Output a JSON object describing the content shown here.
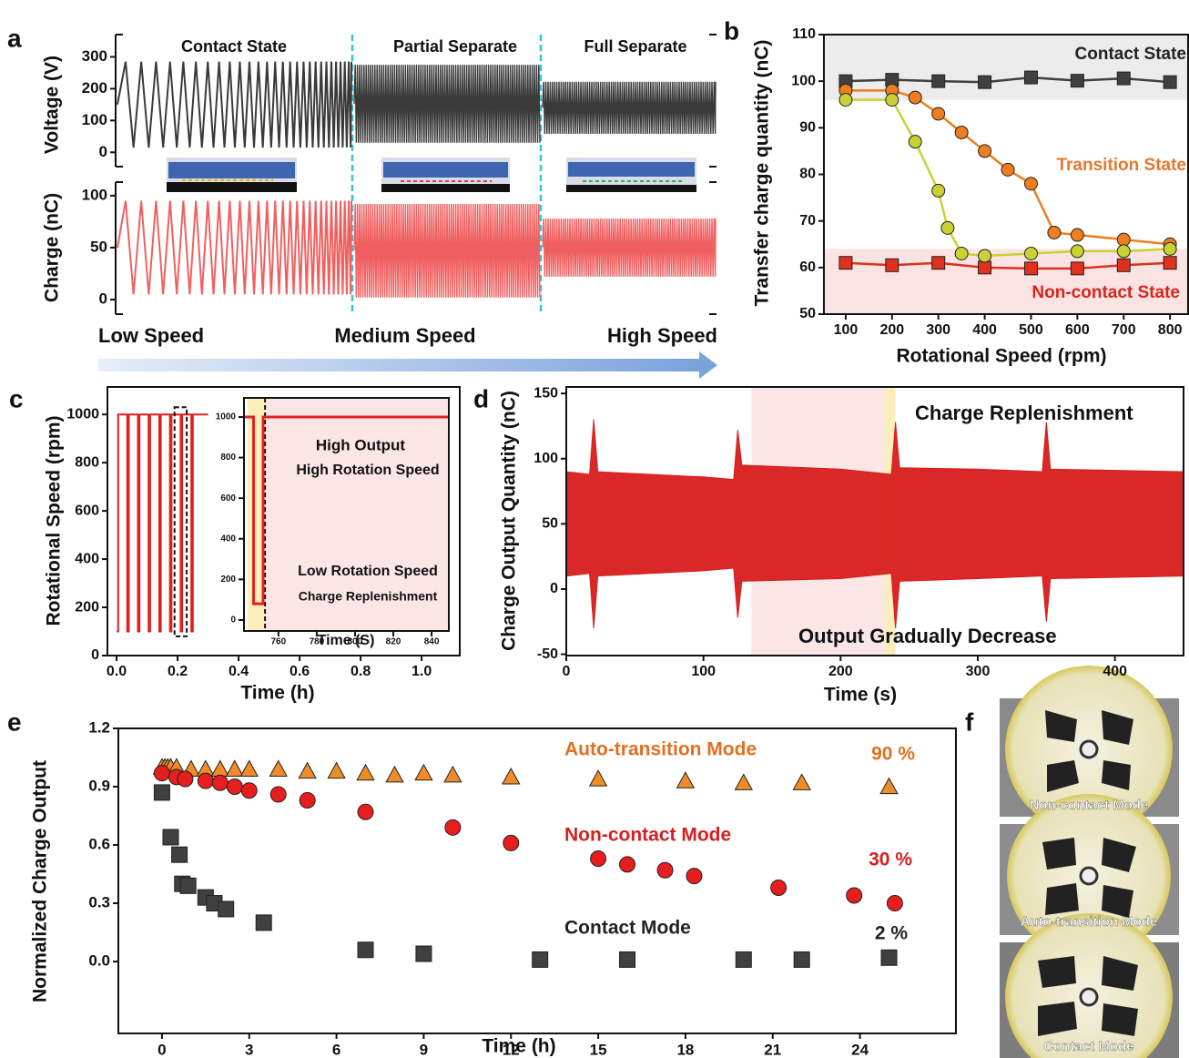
{
  "chart_data": [
    {
      "type": "oscillation",
      "panel": "a",
      "ylabel": "Voltage (V)",
      "ylim": [
        -45,
        370
      ],
      "yticks": [
        0,
        100,
        200,
        300
      ],
      "regions": [
        "Contact State",
        "Partial Separate",
        "Full Separate"
      ],
      "upper": [
        285,
        275,
        222
      ],
      "lower": [
        15,
        30,
        58
      ],
      "color": "#3a3a3a"
    },
    {
      "type": "oscillation",
      "ylabel": "Charge (nC)",
      "ylim": [
        -14,
        113
      ],
      "yticks": [
        0,
        50,
        100
      ],
      "upper": [
        95,
        92,
        78
      ],
      "lower": [
        5,
        2,
        22
      ],
      "color": "#f06060",
      "speeds": [
        "Low Speed",
        "Medium Speed",
        "High Speed"
      ]
    },
    {
      "type": "line",
      "panel": "b",
      "ylabel": "Transfer charge quantity (nC)",
      "xlabel": "Rotational Speed (rpm)",
      "xlim": [
        53,
        839
      ],
      "ylim": [
        50,
        110
      ],
      "xticks": [
        100,
        200,
        300,
        400,
        500,
        600,
        700,
        800
      ],
      "yticks": [
        50,
        60,
        70,
        80,
        90,
        100,
        110
      ],
      "bands": [
        {
          "from": 96,
          "to": 110,
          "color": "#ececec"
        },
        {
          "from": 50,
          "to": 64,
          "color": "#fbe3e3"
        }
      ],
      "series": [
        {
          "name": "Contact State",
          "color": "#404040",
          "marker": "square",
          "x": [
            100,
            200,
            300,
            400,
            500,
            600,
            700,
            800
          ],
          "values": [
            100,
            100.3,
            100,
            99.8,
            100.8,
            100.1,
            100.6,
            99.8
          ]
        },
        {
          "name": "Non-contact State",
          "color": "#e0301e",
          "marker": "square",
          "x": [
            100,
            200,
            300,
            400,
            500,
            600,
            700,
            800
          ],
          "values": [
            61,
            60.5,
            61,
            60,
            59.8,
            59.8,
            60.5,
            61
          ]
        },
        {
          "name": "Transition State",
          "color": "#f07d1e",
          "marker": "circle",
          "x": [
            100,
            200,
            250,
            300,
            350,
            400,
            450,
            500,
            550,
            600,
            700,
            800
          ],
          "values": [
            98,
            98,
            96.5,
            93,
            89,
            85,
            81,
            78,
            67.5,
            67,
            66,
            65
          ]
        },
        {
          "color": "#c8d232",
          "marker": "circle",
          "x": [
            100,
            200,
            250,
            300,
            320,
            350,
            400,
            500,
            600,
            700,
            800
          ],
          "values": [
            96,
            96,
            87,
            76.5,
            68.5,
            63,
            62.5,
            63,
            63.5,
            63.5,
            64
          ]
        }
      ]
    },
    {
      "type": "line",
      "panel": "c",
      "ylabel": "Rotational Speed (rpm)",
      "xlabel": "Time (h)",
      "xlim": [
        -0.03,
        1.125
      ],
      "ylim": [
        0,
        1114
      ],
      "xticks": [
        {
          "value": 0,
          "label": "0.0"
        },
        0.2,
        0.4,
        0.6,
        0.8,
        {
          "value": 1,
          "label": "1.0"
        }
      ],
      "yticks": [
        0,
        200,
        400,
        600,
        800,
        1000
      ],
      "zoom": [
        0.19,
        0.23
      ],
      "series": [
        {
          "color": "#e02020",
          "x": [
            0,
            0.005,
            0.005,
            0.035,
            0.035,
            0.04,
            0.04,
            0.07,
            0.07,
            0.075,
            0.075,
            0.105,
            0.105,
            0.11,
            0.11,
            0.14,
            0.14,
            0.145,
            0.145,
            0.175,
            0.175,
            0.18,
            0.18,
            0.21,
            0.21,
            0.215,
            0.215,
            0.245,
            0.245,
            0.25,
            0.25,
            0.3
          ],
          "values": [
            100,
            100,
            1000,
            1000,
            100,
            100,
            1000,
            1000,
            100,
            100,
            1000,
            1000,
            100,
            100,
            1000,
            1000,
            100,
            100,
            1000,
            1000,
            100,
            100,
            1000,
            1000,
            100,
            100,
            1000,
            1000,
            100,
            100,
            1000,
            1000
          ]
        }
      ],
      "inset": {
        "type": "line",
        "xlabel": "Time (S)",
        "xlim": [
          742,
          849
        ],
        "ylim": [
          -54,
          1094
        ],
        "xticks": [
          760,
          780,
          800,
          820,
          840
        ],
        "yticks": [
          0,
          200,
          400,
          600,
          800,
          1000
        ],
        "xbands": [
          {
            "from": 744,
            "to": 753,
            "color": "#fbeebb"
          },
          {
            "from": 753,
            "to": 849,
            "color": "#fbe6e6"
          }
        ],
        "annotations": [
          "High Output",
          "High Rotation Speed",
          "Low Rotation Speed",
          "Charge Replenishment"
        ],
        "series": [
          {
            "color": "#e02020",
            "x": [
              742,
              747,
              747,
              752,
              752,
              849
            ],
            "values": [
              1000,
              1000,
              80,
              80,
              1000,
              1000
            ]
          }
        ]
      }
    },
    {
      "type": "band",
      "panel": "d",
      "ylabel": "Charge Output Quantity (nC)",
      "xlabel": "Time (s)",
      "xlim": [
        0,
        450
      ],
      "ylim": [
        -51,
        155
      ],
      "xticks": [
        0,
        100,
        200,
        300,
        400
      ],
      "yticks": [
        -50,
        0,
        50,
        100,
        150
      ],
      "xbands": [
        {
          "from": 135,
          "to": 232,
          "color": "#fbe6e6"
        },
        {
          "from": 232,
          "to": 240,
          "color": "#fbeebb"
        }
      ],
      "annotations": [
        "Charge Replenishment",
        "Output Gradually Decrease"
      ],
      "color": "#d81c1c",
      "x": [
        0,
        17,
        20,
        23,
        100,
        122,
        125,
        128,
        200,
        237,
        240,
        243,
        300,
        347,
        350,
        353,
        450
      ],
      "upper": [
        90,
        88,
        130,
        90,
        86,
        84,
        122,
        95,
        92,
        88,
        128,
        93,
        92,
        90,
        128,
        92,
        90
      ],
      "lower": [
        10,
        12,
        -30,
        10,
        14,
        16,
        -22,
        6,
        8,
        12,
        -30,
        6,
        8,
        10,
        -25,
        8,
        10
      ]
    },
    {
      "type": "scatter",
      "panel": "e",
      "ylabel": "Normalized Charge Output",
      "xlabel": "Time (h)",
      "xlim": [
        -1.5,
        27.3
      ],
      "ylim": [
        -0.37,
        1.2
      ],
      "xticks": [
        0,
        3,
        6,
        9,
        12,
        15,
        18,
        21,
        24
      ],
      "yticks": [
        {
          "value": 0,
          "label": "0.0"
        },
        0.3,
        0.6,
        0.9,
        1.2
      ],
      "annotations": [
        "90 %",
        "30 %",
        "2 %"
      ],
      "series": [
        {
          "name": "Auto-transition Mode",
          "color": "#f08c28",
          "marker": "triangle",
          "x": [
            0,
            0.1,
            0.2,
            0.3,
            0.5,
            1,
            1.5,
            2,
            2.5,
            3,
            4,
            5,
            6,
            7,
            8,
            9,
            10,
            12,
            15,
            18,
            20,
            22,
            25
          ],
          "values": [
            1,
            1,
            1,
            1,
            1,
            0.99,
            0.99,
            0.99,
            0.99,
            0.99,
            0.99,
            0.98,
            0.98,
            0.97,
            0.96,
            0.97,
            0.96,
            0.95,
            0.94,
            0.93,
            0.92,
            0.92,
            0.9
          ]
        },
        {
          "name": "Non-contact Mode",
          "color": "#e81e1e",
          "marker": "circle",
          "x": [
            0,
            0.5,
            0.8,
            1.5,
            2,
            2.5,
            3,
            4,
            5,
            7,
            10,
            12,
            15,
            16,
            17.3,
            18.3,
            21.2,
            23.8,
            25.2
          ],
          "values": [
            0.97,
            0.95,
            0.94,
            0.93,
            0.92,
            0.9,
            0.88,
            0.86,
            0.83,
            0.77,
            0.69,
            0.61,
            0.53,
            0.5,
            0.47,
            0.44,
            0.38,
            0.34,
            0.3
          ]
        },
        {
          "name": "Contact Mode",
          "color": "#404040",
          "marker": "square",
          "x": [
            0,
            0.3,
            0.6,
            0.7,
            0.9,
            1.5,
            1.8,
            2.2,
            3.5,
            7,
            9,
            13,
            16,
            20,
            22,
            25
          ],
          "values": [
            0.87,
            0.64,
            0.55,
            0.4,
            0.39,
            0.33,
            0.3,
            0.27,
            0.2,
            0.06,
            0.04,
            0.01,
            0.01,
            0.01,
            0.01,
            0.02
          ]
        }
      ]
    }
  ],
  "photos": {
    "panel": "f",
    "labels": [
      "Non-contact Mode",
      "Auto-transition Mode",
      "Contact Mode"
    ]
  }
}
